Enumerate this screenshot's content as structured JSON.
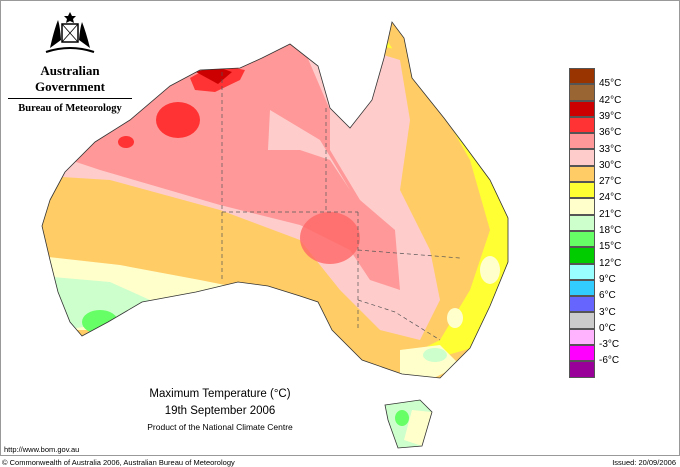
{
  "header": {
    "org": "Australian Government",
    "agency": "Bureau of Meteorology",
    "logo": "Commonwealth coat of arms"
  },
  "title": {
    "line1": "Maximum Temperature (°C)",
    "line2": "19th September 2006",
    "line3": "Product of the National Climate Centre"
  },
  "footer": {
    "url": "http://www.bom.gov.au",
    "copyright": "© Commonwealth of Australia 2006, Australian Bureau of Meteorology",
    "issued": "Issued: 20/09/2006"
  },
  "legend": {
    "colors": [
      "#993300",
      "#996633",
      "#cc0000",
      "#ff3333",
      "#ff9999",
      "#ffcccc",
      "#ffcc66",
      "#ffff33",
      "#ffffcc",
      "#ccffcc",
      "#66ff66",
      "#00cc00",
      "#99ffff",
      "#33ccff",
      "#6666ff",
      "#cccccc",
      "#ffb3ff",
      "#ff00ff",
      "#990099"
    ],
    "labels": [
      "45°C",
      "42°C",
      "39°C",
      "36°C",
      "33°C",
      "30°C",
      "27°C",
      "24°C",
      "21°C",
      "18°C",
      "15°C",
      "12°C",
      "9°C",
      "6°C",
      "3°C",
      "0°C",
      "-3°C",
      "-6°C"
    ]
  }
}
